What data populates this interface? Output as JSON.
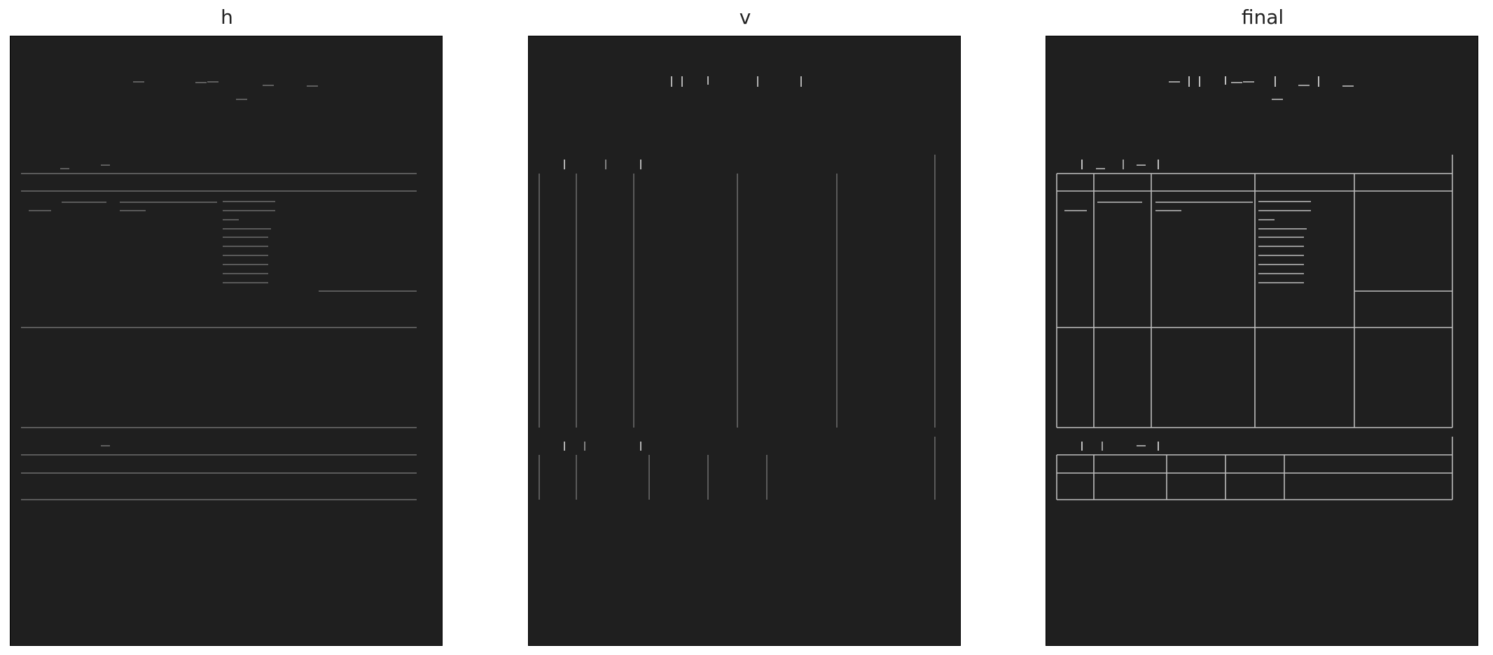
{
  "panels": [
    {
      "id": "h",
      "title": "h"
    },
    {
      "id": "v",
      "title": "v"
    },
    {
      "id": "final",
      "title": "final"
    }
  ],
  "colors": {
    "background": "#1f1f1f",
    "h_lines": "#6e6e6e",
    "v_lines": "#6a6a6a",
    "final_lines": "#bdbdbd",
    "frame": "#000000"
  }
}
